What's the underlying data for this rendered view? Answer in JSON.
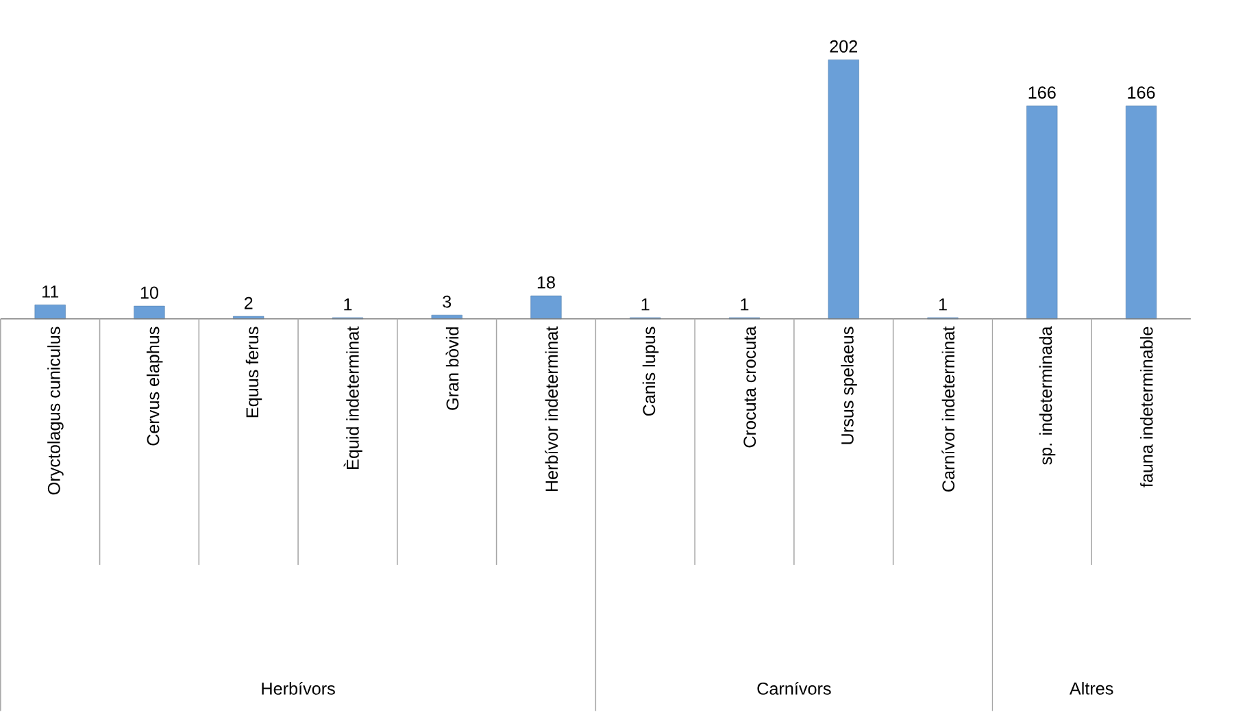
{
  "chart_data": {
    "type": "bar",
    "categories": [
      "Oryctolagus cuniculus",
      "Cervus elaphus",
      "Equus ferus",
      "Èquid indeterminat",
      "Gran bòvid",
      "Herbívor indeterminat",
      "Canis lupus",
      "Crocuta crocuta",
      "Ursus spelaeus",
      "Carnívor indeterminat",
      "sp. indeterminada",
      "fauna indeterminable"
    ],
    "values": [
      11,
      10,
      2,
      1,
      3,
      18,
      1,
      1,
      202,
      1,
      166,
      166
    ],
    "color": "#6a9fd8",
    "data_labels": true,
    "annotations": [
      "Herbívors",
      "Carnívors",
      "Altres"
    ]
  }
}
